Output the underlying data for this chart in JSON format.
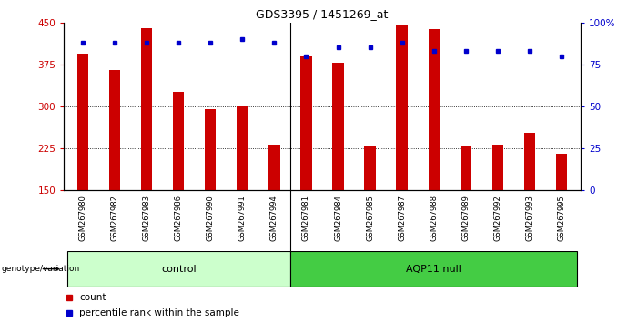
{
  "title": "GDS3395 / 1451269_at",
  "categories": [
    "GSM267980",
    "GSM267982",
    "GSM267983",
    "GSM267986",
    "GSM267990",
    "GSM267991",
    "GSM267994",
    "GSM267981",
    "GSM267984",
    "GSM267985",
    "GSM267987",
    "GSM267988",
    "GSM267989",
    "GSM267992",
    "GSM267993",
    "GSM267995"
  ],
  "bar_values": [
    395,
    365,
    440,
    325,
    295,
    302,
    232,
    390,
    378,
    230,
    445,
    438,
    230,
    232,
    252,
    215
  ],
  "percentile_values": [
    88,
    88,
    88,
    88,
    88,
    90,
    88,
    80,
    85,
    85,
    88,
    83,
    83,
    83,
    83,
    80
  ],
  "group_colors": [
    "#ccffcc",
    "#44cc44"
  ],
  "bar_color": "#cc0000",
  "dot_color": "#0000cc",
  "ymin": 150,
  "ymax": 450,
  "yticks": [
    150,
    225,
    300,
    375,
    450
  ],
  "y2ticks": [
    0,
    25,
    50,
    75,
    100
  ],
  "y2labels": [
    "0",
    "25",
    "50",
    "75",
    "100%"
  ],
  "gridlines": [
    225,
    300,
    375
  ],
  "bg_color": "#ffffff",
  "title_fontsize": 9,
  "legend_items": [
    "count",
    "percentile rank within the sample"
  ],
  "legend_colors": [
    "#cc0000",
    "#0000cc"
  ],
  "ylabel_color": "#cc0000",
  "y2label_color": "#0000cc",
  "ctrl_count": 7,
  "aqp_count": 9
}
